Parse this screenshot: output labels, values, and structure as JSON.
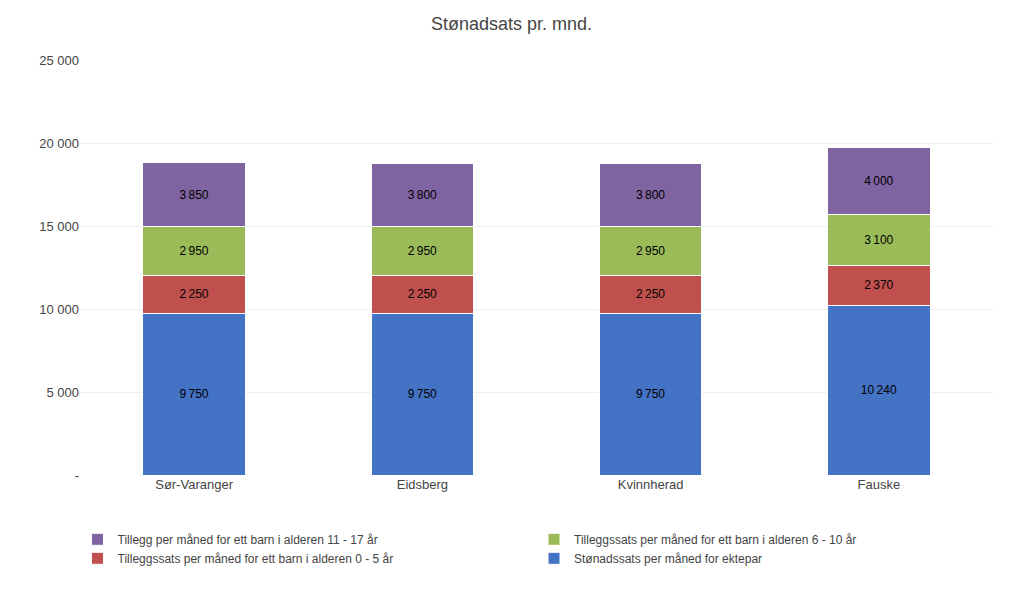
{
  "chart_data": {
    "type": "bar",
    "stacked": true,
    "title": "Stønadsats pr. mnd.",
    "categories": [
      "Sør-Varanger",
      "Eidsberg",
      "Kvinnherad",
      "Fauske"
    ],
    "series": [
      {
        "name": "Stønadssats per måned for ektepar",
        "color": "#4472C4",
        "values": [
          9750,
          9750,
          9750,
          10240
        ],
        "value_labels": [
          "9 750",
          "9 750",
          "9 750",
          "10 240"
        ]
      },
      {
        "name": "Tilleggssats per måned for ett barn i alderen 0 - 5 år",
        "color": "#C0504D",
        "values": [
          2250,
          2250,
          2250,
          2370
        ],
        "value_labels": [
          "2 250",
          "2 250",
          "2 250",
          "2 370"
        ]
      },
      {
        "name": "Tilleggssats per måned for ett barn i alderen 6 - 10 år",
        "color": "#9BBB59",
        "values": [
          2950,
          2950,
          2950,
          3100
        ],
        "value_labels": [
          "2 950",
          "2 950",
          "2 950",
          "3 100"
        ]
      },
      {
        "name": "Tillegg per måned for ett barn i alderen 11 - 17 år",
        "color": "#8064A2",
        "values": [
          3850,
          3800,
          3800,
          4000
        ],
        "value_labels": [
          "3 850",
          "3 800",
          "3 800",
          "4 000"
        ]
      }
    ],
    "ylim": [
      0,
      25000
    ],
    "yticks": [
      {
        "value": 0,
        "label": "-"
      },
      {
        "value": 5000,
        "label": "5 000"
      },
      {
        "value": 10000,
        "label": "10 000"
      },
      {
        "value": 15000,
        "label": "15 000"
      },
      {
        "value": 20000,
        "label": "20 000"
      },
      {
        "value": 25000,
        "label": "25 000"
      }
    ],
    "grid": true,
    "data_labels": true,
    "legend": "bottom"
  }
}
